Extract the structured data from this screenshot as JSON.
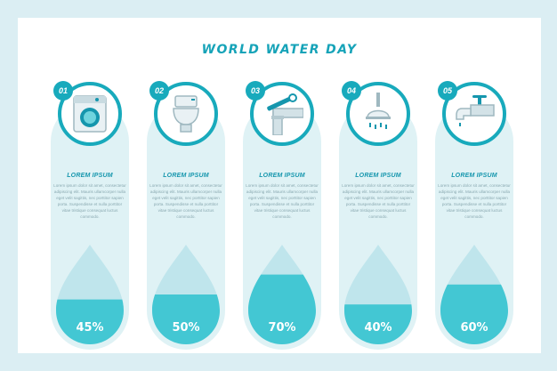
{
  "title": "WORLD WATER DAY",
  "colors": {
    "accent": "#18aabc",
    "panel": "#dff2f5",
    "water": "#43c7d3",
    "background": "#dbeef3"
  },
  "items": [
    {
      "number": "01",
      "icon": "washing-machine-icon",
      "heading": "LOREM IPSUM",
      "text": "Lorem ipsum dolor sit amet, consectetur adipiscing elit. Mauris ullamcorper nulla eget velit sagittis, nec porttitor sapien porta. Suspendisse et nulla porttitor vitae tristique consequat luctus commodo.",
      "percent_label": "45%",
      "fill": 0.45
    },
    {
      "number": "02",
      "icon": "toilet-icon",
      "heading": "LOREM IPSUM",
      "text": "Lorem ipsum dolor sit amet, consectetur adipiscing elit. Mauris ullamcorper nulla eget velit sagittis, nec porttitor sapien porta. Suspendisse et nulla porttitor vitae tristique consequat luctus commodo.",
      "percent_label": "50%",
      "fill": 0.5
    },
    {
      "number": "03",
      "icon": "pipe-wrench-icon",
      "heading": "LOREM IPSUM",
      "text": "Lorem ipsum dolor sit amet, consectetur adipiscing elit. Mauris ullamcorper nulla eget velit sagittis, nec porttitor sapien porta. Suspendisse et nulla porttitor vitae tristique consequat luctus commodo.",
      "percent_label": "70%",
      "fill": 0.7
    },
    {
      "number": "04",
      "icon": "shower-icon",
      "heading": "LOREM IPSUM",
      "text": "Lorem ipsum dolor sit amet, consectetur adipiscing elit. Mauris ullamcorper nulla eget velit sagittis, nec porttitor sapien porta. Suspendisse et nulla porttitor vitae tristique consequat luctus commodo.",
      "percent_label": "40%",
      "fill": 0.4
    },
    {
      "number": "05",
      "icon": "faucet-icon",
      "heading": "LOREM IPSUM",
      "text": "Lorem ipsum dolor sit amet, consectetur adipiscing elit. Mauris ullamcorper nulla eget velit sagittis, nec porttitor sapien porta. Suspendisse et nulla porttitor vitae tristique consequat luctus commodo.",
      "percent_label": "60%",
      "fill": 0.6
    }
  ]
}
